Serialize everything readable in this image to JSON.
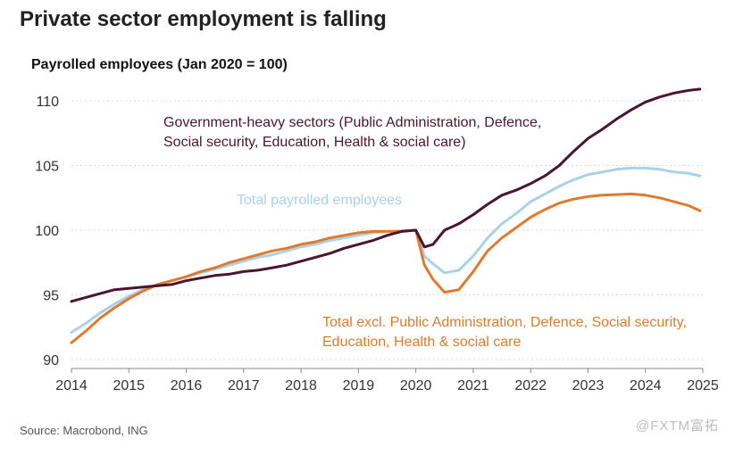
{
  "title": "Private sector employment is falling",
  "source": "Source: Macrobond, ING",
  "watermark": "@FXTM富拓",
  "colors": {
    "government": "#4a1530",
    "total": "#a9d2ea",
    "private": "#e07b2e",
    "gridline": "#d9d9d9",
    "axis": "#888888"
  },
  "chart_data": {
    "type": "line",
    "title": "Private sector employment is falling",
    "ylabel": "Payrolled employees (Jan 2020 = 100)",
    "xlabel": "",
    "xlim": [
      2014,
      2025.1
    ],
    "ylim": [
      89,
      112
    ],
    "xticks": [
      2014,
      2015,
      2016,
      2017,
      2018,
      2019,
      2020,
      2021,
      2022,
      2023,
      2024,
      2025
    ],
    "yticks": [
      90,
      95,
      100,
      105,
      110
    ],
    "grid": true,
    "series": [
      {
        "name": "Government-heavy sectors (Public Administration, Defence, Social security, Education, Health & social care)",
        "label_lines": [
          "Government-heavy sectors (Public Administration, Defence,",
          "Social security, Education, Health & social care)"
        ],
        "color": "#4a1530",
        "x": [
          2014.0,
          2014.25,
          2014.5,
          2014.75,
          2015.0,
          2015.25,
          2015.5,
          2015.75,
          2016.0,
          2016.25,
          2016.5,
          2016.75,
          2017.0,
          2017.25,
          2017.5,
          2017.75,
          2018.0,
          2018.25,
          2018.5,
          2018.75,
          2019.0,
          2019.25,
          2019.5,
          2019.75,
          2020.0,
          2020.15,
          2020.3,
          2020.5,
          2020.75,
          2021.0,
          2021.25,
          2021.5,
          2021.75,
          2022.0,
          2022.25,
          2022.5,
          2022.75,
          2023.0,
          2023.25,
          2023.5,
          2023.75,
          2024.0,
          2024.25,
          2024.5,
          2024.75,
          2024.95
        ],
        "values": [
          94.5,
          94.8,
          95.1,
          95.4,
          95.5,
          95.6,
          95.7,
          95.8,
          96.1,
          96.3,
          96.5,
          96.6,
          96.8,
          96.9,
          97.1,
          97.3,
          97.6,
          97.9,
          98.2,
          98.6,
          98.9,
          99.2,
          99.6,
          99.9,
          100.0,
          98.7,
          98.9,
          100.0,
          100.5,
          101.2,
          102.0,
          102.7,
          103.1,
          103.6,
          104.2,
          105.0,
          106.1,
          107.1,
          107.8,
          108.6,
          109.3,
          109.9,
          110.3,
          110.6,
          110.8,
          110.9
        ]
      },
      {
        "name": "Total payrolled employees",
        "label_lines": [
          "Total payrolled employees"
        ],
        "color": "#a9d2ea",
        "x": [
          2014.0,
          2014.25,
          2014.5,
          2014.75,
          2015.0,
          2015.25,
          2015.5,
          2015.75,
          2016.0,
          2016.25,
          2016.5,
          2016.75,
          2017.0,
          2017.25,
          2017.5,
          2017.75,
          2018.0,
          2018.25,
          2018.5,
          2018.75,
          2019.0,
          2019.25,
          2019.5,
          2019.75,
          2020.0,
          2020.15,
          2020.3,
          2020.5,
          2020.75,
          2021.0,
          2021.25,
          2021.5,
          2021.75,
          2022.0,
          2022.25,
          2022.5,
          2022.75,
          2023.0,
          2023.25,
          2023.5,
          2023.75,
          2024.0,
          2024.25,
          2024.5,
          2024.75,
          2024.95
        ],
        "values": [
          92.1,
          92.8,
          93.6,
          94.3,
          94.9,
          95.4,
          95.8,
          96.1,
          96.4,
          96.7,
          97.0,
          97.3,
          97.6,
          97.9,
          98.1,
          98.4,
          98.7,
          98.9,
          99.2,
          99.4,
          99.6,
          99.8,
          99.9,
          99.95,
          100.0,
          98.0,
          97.4,
          96.7,
          96.9,
          98.0,
          99.4,
          100.5,
          101.3,
          102.2,
          102.8,
          103.4,
          103.9,
          104.3,
          104.5,
          104.7,
          104.8,
          104.8,
          104.7,
          104.5,
          104.4,
          104.2
        ]
      },
      {
        "name": "Total excl. Public Administration, Defence, Social security, Education, Health & social care",
        "label_lines": [
          "Total excl. Public Administration, Defence, Social security,",
          "Education, Health & social care"
        ],
        "color": "#e07b2e",
        "x": [
          2014.0,
          2014.25,
          2014.5,
          2014.75,
          2015.0,
          2015.25,
          2015.5,
          2015.75,
          2016.0,
          2016.25,
          2016.5,
          2016.75,
          2017.0,
          2017.25,
          2017.5,
          2017.75,
          2018.0,
          2018.25,
          2018.5,
          2018.75,
          2019.0,
          2019.25,
          2019.5,
          2019.75,
          2020.0,
          2020.15,
          2020.3,
          2020.5,
          2020.75,
          2021.0,
          2021.25,
          2021.5,
          2021.75,
          2022.0,
          2022.25,
          2022.5,
          2022.75,
          2023.0,
          2023.25,
          2023.5,
          2023.75,
          2024.0,
          2024.25,
          2024.5,
          2024.75,
          2024.95
        ],
        "values": [
          91.3,
          92.2,
          93.2,
          94.0,
          94.7,
          95.3,
          95.8,
          96.1,
          96.4,
          96.8,
          97.1,
          97.5,
          97.8,
          98.1,
          98.4,
          98.6,
          98.9,
          99.1,
          99.4,
          99.6,
          99.8,
          99.9,
          99.9,
          99.9,
          100.0,
          97.3,
          96.2,
          95.2,
          95.4,
          96.8,
          98.4,
          99.4,
          100.2,
          101.0,
          101.6,
          102.1,
          102.4,
          102.6,
          102.7,
          102.75,
          102.8,
          102.7,
          102.5,
          102.2,
          101.9,
          101.5
        ]
      }
    ]
  }
}
